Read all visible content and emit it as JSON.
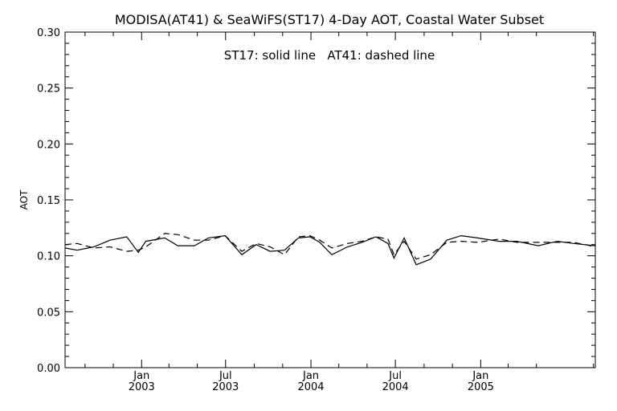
{
  "chart_data": {
    "type": "line",
    "title": "MODISA(AT41) & SeaWiFS(ST17) 4-Day AOT, Coastal Water Subset",
    "annotation": "ST17: solid line   AT41: dashed line",
    "ylabel": "AOT",
    "xlabel": "",
    "ylim": [
      0.0,
      0.3
    ],
    "yticks": [
      0.0,
      0.05,
      0.1,
      0.15,
      0.2,
      0.25,
      0.3
    ],
    "ytick_labels": [
      "0.00",
      "0.05",
      "0.10",
      "0.15",
      "0.20",
      "0.25",
      "0.30"
    ],
    "xlim": [
      "2002-07-20",
      "2005-09-05"
    ],
    "xticks": [
      {
        "date": "2003-01-01",
        "month": "Jan",
        "year": "2003"
      },
      {
        "date": "2003-07-01",
        "month": "Jul",
        "year": "2003"
      },
      {
        "date": "2004-01-01",
        "month": "Jan",
        "year": "2004"
      },
      {
        "date": "2004-07-01",
        "month": "Jul",
        "year": "2004"
      },
      {
        "date": "2005-01-01",
        "month": "Jan",
        "year": "2005"
      }
    ],
    "grid": false,
    "series": [
      {
        "name": "ST17",
        "style": "solid",
        "points": [
          [
            "2002-07-20",
            0.107
          ],
          [
            "2002-08-15",
            0.105
          ],
          [
            "2002-09-20",
            0.108
          ],
          [
            "2002-10-25",
            0.114
          ],
          [
            "2002-11-30",
            0.117
          ],
          [
            "2002-12-25",
            0.103
          ],
          [
            "2003-01-10",
            0.113
          ],
          [
            "2003-02-20",
            0.116
          ],
          [
            "2003-03-20",
            0.109
          ],
          [
            "2003-04-25",
            0.109
          ],
          [
            "2003-05-25",
            0.116
          ],
          [
            "2003-06-30",
            0.118
          ],
          [
            "2003-08-05",
            0.101
          ],
          [
            "2003-09-05",
            0.11
          ],
          [
            "2003-10-05",
            0.104
          ],
          [
            "2003-11-05",
            0.105
          ],
          [
            "2003-12-05",
            0.116
          ],
          [
            "2003-12-30",
            0.117
          ],
          [
            "2004-01-20",
            0.112
          ],
          [
            "2004-02-15",
            0.101
          ],
          [
            "2004-03-20",
            0.108
          ],
          [
            "2004-04-20",
            0.112
          ],
          [
            "2004-05-20",
            0.117
          ],
          [
            "2004-06-15",
            0.111
          ],
          [
            "2004-06-28",
            0.098
          ],
          [
            "2004-07-20",
            0.116
          ],
          [
            "2004-08-15",
            0.092
          ],
          [
            "2004-09-15",
            0.097
          ],
          [
            "2004-10-20",
            0.114
          ],
          [
            "2004-11-20",
            0.118
          ],
          [
            "2004-12-25",
            0.116
          ],
          [
            "2005-02-10",
            0.113
          ],
          [
            "2005-03-20",
            0.113
          ],
          [
            "2005-05-05",
            0.109
          ],
          [
            "2005-06-15",
            0.113
          ],
          [
            "2005-07-20",
            0.111
          ],
          [
            "2005-09-05",
            0.109
          ]
        ]
      },
      {
        "name": "AT41",
        "style": "dashed",
        "points": [
          [
            "2002-07-20",
            0.11
          ],
          [
            "2002-08-15",
            0.111
          ],
          [
            "2002-09-20",
            0.107
          ],
          [
            "2002-10-25",
            0.108
          ],
          [
            "2002-11-30",
            0.104
          ],
          [
            "2002-12-25",
            0.105
          ],
          [
            "2003-01-10",
            0.108
          ],
          [
            "2003-02-20",
            0.12
          ],
          [
            "2003-03-20",
            0.119
          ],
          [
            "2003-04-25",
            0.114
          ],
          [
            "2003-05-25",
            0.114
          ],
          [
            "2003-06-30",
            0.118
          ],
          [
            "2003-08-05",
            0.104
          ],
          [
            "2003-09-05",
            0.111
          ],
          [
            "2003-10-05",
            0.108
          ],
          [
            "2003-11-05",
            0.101
          ],
          [
            "2003-12-05",
            0.117
          ],
          [
            "2003-12-30",
            0.118
          ],
          [
            "2004-01-20",
            0.114
          ],
          [
            "2004-02-15",
            0.107
          ],
          [
            "2004-03-20",
            0.111
          ],
          [
            "2004-04-20",
            0.113
          ],
          [
            "2004-05-20",
            0.117
          ],
          [
            "2004-06-15",
            0.115
          ],
          [
            "2004-06-28",
            0.101
          ],
          [
            "2004-07-20",
            0.113
          ],
          [
            "2004-08-15",
            0.097
          ],
          [
            "2004-09-15",
            0.101
          ],
          [
            "2004-10-20",
            0.112
          ],
          [
            "2004-11-20",
            0.113
          ],
          [
            "2004-12-25",
            0.112
          ],
          [
            "2005-02-10",
            0.115
          ],
          [
            "2005-03-20",
            0.112
          ],
          [
            "2005-05-05",
            0.112
          ],
          [
            "2005-06-15",
            0.112
          ],
          [
            "2005-07-20",
            0.112
          ],
          [
            "2005-09-05",
            0.108
          ]
        ]
      }
    ]
  }
}
